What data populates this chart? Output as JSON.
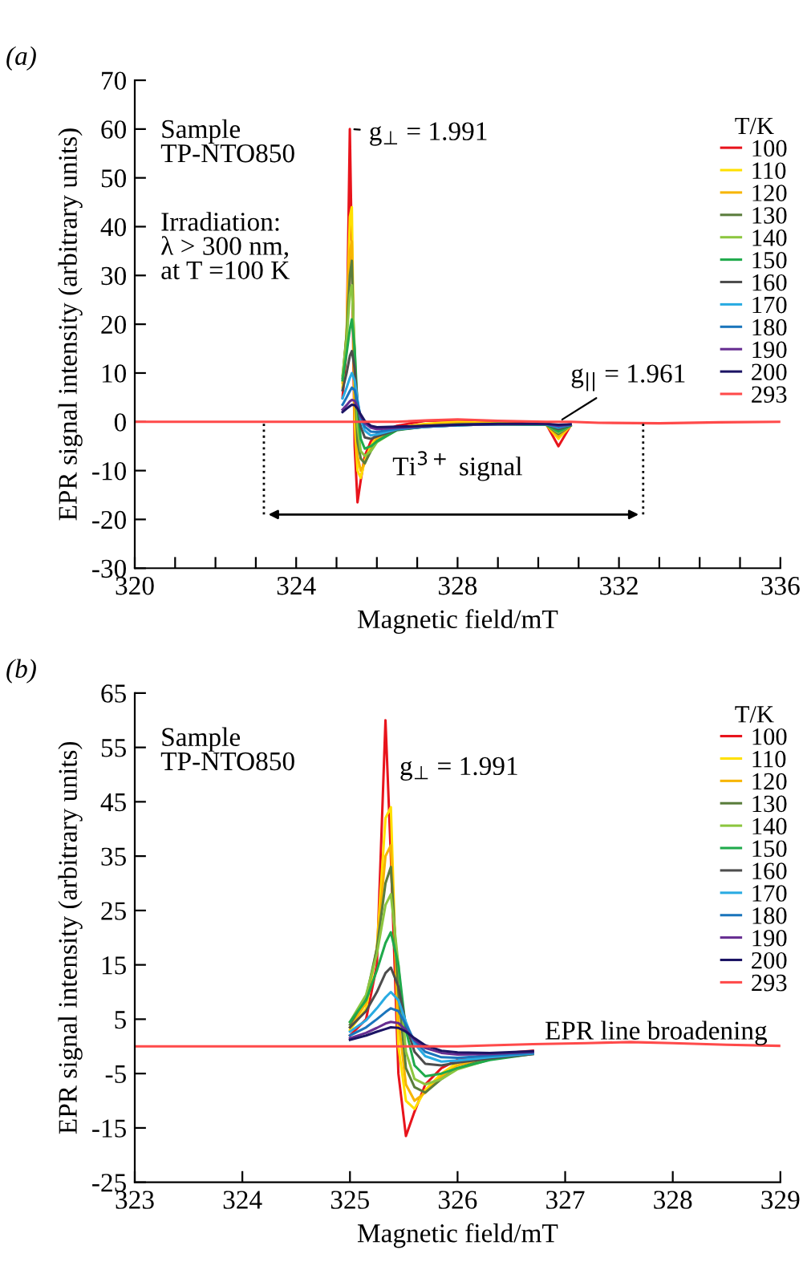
{
  "chart_data": [
    {
      "type": "line",
      "title": "(a)",
      "xlabel": "Magnetic field/mT",
      "ylabel": "EPR signal intensity (arbitrary units)",
      "legend": "top right",
      "legend_title": "T/K",
      "xlim": [
        320,
        336
      ],
      "ylim": [
        -30,
        70
      ],
      "xticks": [
        320,
        {
          "value": 321,
          "label": null
        },
        {
          "value": 322,
          "label": null
        },
        {
          "value": 323,
          "label": null
        },
        324,
        {
          "value": 325,
          "label": null
        },
        {
          "value": 326,
          "label": null
        },
        {
          "value": 327,
          "label": null
        },
        328,
        {
          "value": 329,
          "label": null
        },
        {
          "value": 330,
          "label": null
        },
        {
          "value": 331,
          "label": null
        },
        332,
        {
          "value": 333,
          "label": null
        },
        {
          "value": 334,
          "label": null
        },
        {
          "value": 335,
          "label": null
        },
        336
      ],
      "yticks": [
        -30,
        -20,
        -10,
        0,
        10,
        20,
        30,
        40,
        50,
        60,
        70
      ],
      "x": [
        320,
        322,
        323.5,
        324.5,
        324.8,
        325.0,
        325.15,
        325.25,
        325.33,
        325.38,
        325.45,
        325.52,
        325.6,
        325.7,
        325.85,
        326.0,
        326.5,
        327.2,
        328,
        329,
        330.2,
        330.5,
        330.8,
        331.5,
        333,
        334.5,
        336
      ],
      "series": [
        {
          "name": "100",
          "color": "#e8141c",
          "values": [
            null,
            null,
            null,
            null,
            null,
            null,
            5,
            15,
            60,
            35,
            -5,
            -16.5,
            -12,
            -7,
            -4,
            -2.5,
            -0.8,
            0.2,
            0.3,
            -0.1,
            -0.5,
            -5,
            -0.8,
            null,
            null,
            null,
            null
          ]
        },
        {
          "name": "110",
          "color": "#ffe000",
          "values": [
            null,
            null,
            null,
            null,
            null,
            null,
            7,
            18,
            42,
            44,
            0,
            -10,
            -11.5,
            -8,
            -5,
            -3,
            -1.2,
            -0.4,
            0,
            -0.3,
            -0.6,
            -3.5,
            -0.8,
            null,
            null,
            null,
            null
          ]
        },
        {
          "name": "120",
          "color": "#f7b500",
          "values": [
            null,
            null,
            null,
            null,
            null,
            null,
            8,
            18,
            35,
            37,
            5,
            -7,
            -10,
            -8.5,
            -5.5,
            -3.5,
            -1.3,
            -0.6,
            -0.3,
            -0.4,
            -0.6,
            -3,
            -0.8,
            null,
            null,
            null,
            null
          ]
        },
        {
          "name": "130",
          "color": "#5a7d3c",
          "values": [
            null,
            null,
            null,
            null,
            null,
            null,
            9,
            18,
            30,
            33,
            10,
            -4,
            -7.5,
            -8.5,
            -6,
            -4,
            -1.5,
            -0.8,
            -0.5,
            -0.4,
            -0.6,
            -2.5,
            -0.8,
            null,
            null,
            null,
            null
          ]
        },
        {
          "name": "140",
          "color": "#8cc63f",
          "values": [
            null,
            null,
            null,
            null,
            null,
            null,
            9.5,
            17,
            26,
            28,
            15,
            -1,
            -6,
            -7,
            -6,
            -4.2,
            -1.6,
            -0.9,
            -0.6,
            -0.5,
            -0.6,
            -2.2,
            -0.8,
            null,
            null,
            null,
            null
          ]
        },
        {
          "name": "150",
          "color": "#1faa4b",
          "values": [
            null,
            null,
            null,
            null,
            null,
            null,
            8.5,
            14,
            19,
            21,
            15,
            3,
            -3.5,
            -5.5,
            -5,
            -4,
            -1.7,
            -1,
            -0.7,
            -0.5,
            -0.6,
            -2,
            -0.8,
            null,
            null,
            null,
            null
          ]
        },
        {
          "name": "160",
          "color": "#4d4d4d",
          "values": [
            null,
            null,
            null,
            null,
            null,
            null,
            6.5,
            10,
            13.5,
            14.5,
            11,
            4,
            -1,
            -3.2,
            -3.5,
            -3,
            -1.6,
            -1,
            -0.7,
            -0.5,
            -0.5,
            -1.5,
            -0.7,
            null,
            null,
            null,
            null
          ]
        },
        {
          "name": "170",
          "color": "#29abe2",
          "values": [
            null,
            null,
            null,
            null,
            null,
            null,
            4.8,
            7,
            9,
            10,
            8.5,
            4.5,
            0.5,
            -1.8,
            -2.8,
            -2.6,
            -1.5,
            -1,
            -0.7,
            -0.5,
            -0.5,
            -1.2,
            -0.6,
            null,
            null,
            null,
            null
          ]
        },
        {
          "name": "180",
          "color": "#1b75bc",
          "values": [
            null,
            null,
            null,
            null,
            null,
            null,
            3.5,
            5,
            6.3,
            7,
            6.5,
            4,
            1,
            -1,
            -2,
            -2.1,
            -1.4,
            -1,
            -0.7,
            -0.5,
            -0.5,
            -1,
            -0.6,
            null,
            null,
            null,
            null
          ]
        },
        {
          "name": "190",
          "color": "#662d91",
          "values": [
            null,
            null,
            null,
            null,
            null,
            null,
            2.5,
            3.4,
            4.2,
            4.5,
            4.3,
            3,
            1.2,
            -0.3,
            -1.2,
            -1.5,
            -1.2,
            -0.9,
            -0.6,
            -0.5,
            -0.4,
            -0.8,
            -0.5,
            null,
            null,
            null,
            null
          ]
        },
        {
          "name": "200",
          "color": "#1b1464",
          "values": [
            null,
            null,
            null,
            null,
            null,
            null,
            2,
            2.7,
            3.2,
            3.5,
            3.4,
            2.7,
            1.5,
            0.2,
            -0.8,
            -1.1,
            -1,
            -0.8,
            -0.6,
            -0.4,
            -0.4,
            -0.6,
            -0.5,
            null,
            null,
            null,
            null
          ]
        },
        {
          "name": "293",
          "color": "#ff4a4a",
          "values": [
            0,
            0,
            0,
            0,
            0,
            0,
            0,
            0,
            0,
            0,
            0,
            0,
            0,
            0,
            0,
            0,
            0,
            0.3,
            0.5,
            0.2,
            0,
            0,
            0,
            -0.2,
            -0.3,
            -0.1,
            0
          ]
        }
      ],
      "annotations": [
        "Sample\nTP-NTO850",
        "Irradiation:\nλ > 300 nm,\nat T =100 K",
        "Ti$^{3+}$ signal",
        {
          "text": "g$_{⊥}$ = 1.991",
          "x": 325.33,
          "y": 60
        },
        {
          "text": "g$_{||}$ = 1.961",
          "x": 330.5,
          "y": 0
        }
      ]
    },
    {
      "type": "line",
      "title": "(b)",
      "xlabel": "Magnetic field/mT",
      "ylabel": "EPR signal intensity (arbitrary units)",
      "legend": "top right",
      "legend_title": "T/K",
      "xlim": [
        323,
        329
      ],
      "ylim": [
        -25,
        65
      ],
      "xticks": [
        323,
        324,
        325,
        326,
        327,
        328,
        329
      ],
      "yticks": [
        -25,
        -15,
        -5,
        5,
        15,
        25,
        35,
        45,
        55,
        65
      ],
      "x": [
        323,
        324,
        324.5,
        324.8,
        325.0,
        325.15,
        325.25,
        325.33,
        325.38,
        325.45,
        325.52,
        325.6,
        325.7,
        325.85,
        326.0,
        326.3,
        326.7,
        327.2,
        327.6,
        328,
        328.5,
        329
      ],
      "series": [
        {
          "name": "100",
          "color": "#e8141c",
          "values": [
            null,
            null,
            null,
            null,
            2,
            5,
            15,
            60,
            35,
            -5,
            -16.5,
            -12,
            -7,
            -4,
            -2.5,
            -1.5,
            -0.8,
            null,
            null,
            null,
            null,
            null
          ]
        },
        {
          "name": "110",
          "color": "#ffe000",
          "values": [
            null,
            null,
            null,
            null,
            3,
            7,
            18,
            42,
            44,
            0,
            -10,
            -11.5,
            -8,
            -5,
            -3,
            -1.8,
            -1,
            null,
            null,
            null,
            null,
            null
          ]
        },
        {
          "name": "120",
          "color": "#f7b500",
          "values": [
            null,
            null,
            null,
            null,
            3.5,
            8,
            18,
            35,
            37,
            5,
            -7,
            -10,
            -8.5,
            -5.5,
            -3.5,
            -2,
            -1,
            null,
            null,
            null,
            null,
            null
          ]
        },
        {
          "name": "130",
          "color": "#5a7d3c",
          "values": [
            null,
            null,
            null,
            null,
            4,
            9,
            18,
            30,
            33,
            10,
            -4,
            -7.5,
            -8.5,
            -6,
            -4,
            -2.2,
            -1.2,
            null,
            null,
            null,
            null,
            null
          ]
        },
        {
          "name": "140",
          "color": "#8cc63f",
          "values": [
            null,
            null,
            null,
            null,
            4.5,
            9.5,
            17,
            26,
            28,
            15,
            -1,
            -6,
            -7,
            -6,
            -4.2,
            -2.4,
            -1.3,
            null,
            null,
            null,
            null,
            null
          ]
        },
        {
          "name": "150",
          "color": "#1faa4b",
          "values": [
            null,
            null,
            null,
            null,
            4.5,
            8.5,
            14,
            19,
            21,
            15,
            3,
            -3.5,
            -5.5,
            -5,
            -4,
            -2.5,
            -1.4,
            null,
            null,
            null,
            null,
            null
          ]
        },
        {
          "name": "160",
          "color": "#4d4d4d",
          "values": [
            null,
            null,
            null,
            null,
            3.5,
            6.5,
            10,
            13.5,
            14.5,
            11,
            4,
            -1,
            -3.2,
            -3.5,
            -3,
            -2.2,
            -1.4,
            null,
            null,
            null,
            null,
            null
          ]
        },
        {
          "name": "170",
          "color": "#29abe2",
          "values": [
            null,
            null,
            null,
            null,
            2.7,
            4.8,
            7,
            9,
            10,
            8.5,
            4.5,
            0.5,
            -1.8,
            -2.8,
            -2.6,
            -2,
            -1.3,
            null,
            null,
            null,
            null,
            null
          ]
        },
        {
          "name": "180",
          "color": "#1b75bc",
          "values": [
            null,
            null,
            null,
            null,
            2,
            3.5,
            5,
            6.3,
            7,
            6.5,
            4,
            1,
            -1,
            -2,
            -2.1,
            -1.7,
            -1.2,
            null,
            null,
            null,
            null,
            null
          ]
        },
        {
          "name": "190",
          "color": "#662d91",
          "values": [
            null,
            null,
            null,
            null,
            1.5,
            2.5,
            3.4,
            4.2,
            4.5,
            4.3,
            3,
            1.2,
            -0.3,
            -1.2,
            -1.5,
            -1.4,
            -1,
            null,
            null,
            null,
            null,
            null
          ]
        },
        {
          "name": "200",
          "color": "#1b1464",
          "values": [
            null,
            null,
            null,
            null,
            1.2,
            2,
            2.7,
            3.2,
            3.5,
            3.4,
            2.7,
            1.5,
            0.2,
            -0.8,
            -1.1,
            -1.2,
            -0.9,
            null,
            null,
            null,
            null,
            null
          ]
        },
        {
          "name": "293",
          "color": "#ff4a4a",
          "values": [
            0,
            0,
            0,
            0,
            0,
            0,
            0,
            0,
            0,
            0,
            0,
            0,
            0,
            0,
            0,
            0.2,
            0.4,
            0.6,
            0.8,
            0.6,
            0.3,
            0.1
          ]
        }
      ],
      "annotations": [
        "Sample\nTP-NTO850",
        "g$_{⊥}$ = 1.991",
        "EPR line broadening"
      ]
    }
  ]
}
